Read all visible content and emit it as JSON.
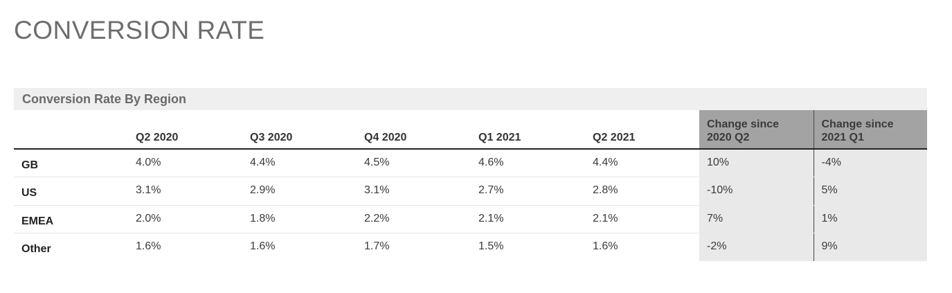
{
  "page": {
    "title": "CONVERSION RATE"
  },
  "chart_data": {
    "type": "table",
    "title": "Conversion Rate By Region",
    "columns": [
      "",
      "Q2 2020",
      "Q3 2020",
      "Q4 2020",
      "Q1 2021",
      "Q2 2021",
      "Change since 2020 Q2",
      "Change since 2021 Q1"
    ],
    "rows": [
      {
        "label": "GB",
        "values": [
          "4.0%",
          "4.4%",
          "4.5%",
          "4.6%",
          "4.4%",
          "10%",
          "-4%"
        ]
      },
      {
        "label": "US",
        "values": [
          "3.1%",
          "2.9%",
          "3.1%",
          "2.7%",
          "2.8%",
          "-10%",
          "5%"
        ]
      },
      {
        "label": "EMEA",
        "values": [
          "2.0%",
          "1.8%",
          "2.2%",
          "2.1%",
          "2.1%",
          "7%",
          "1%"
        ]
      },
      {
        "label": "Other",
        "values": [
          "1.6%",
          "1.6%",
          "1.7%",
          "1.5%",
          "1.6%",
          "-2%",
          "9%"
        ]
      }
    ]
  },
  "colors": {
    "title_text": "#6d6d6d",
    "caption_bg": "#efefef",
    "change_header_bg": "#a3a3a3",
    "change_cell_bg": "#e9e9e9"
  }
}
